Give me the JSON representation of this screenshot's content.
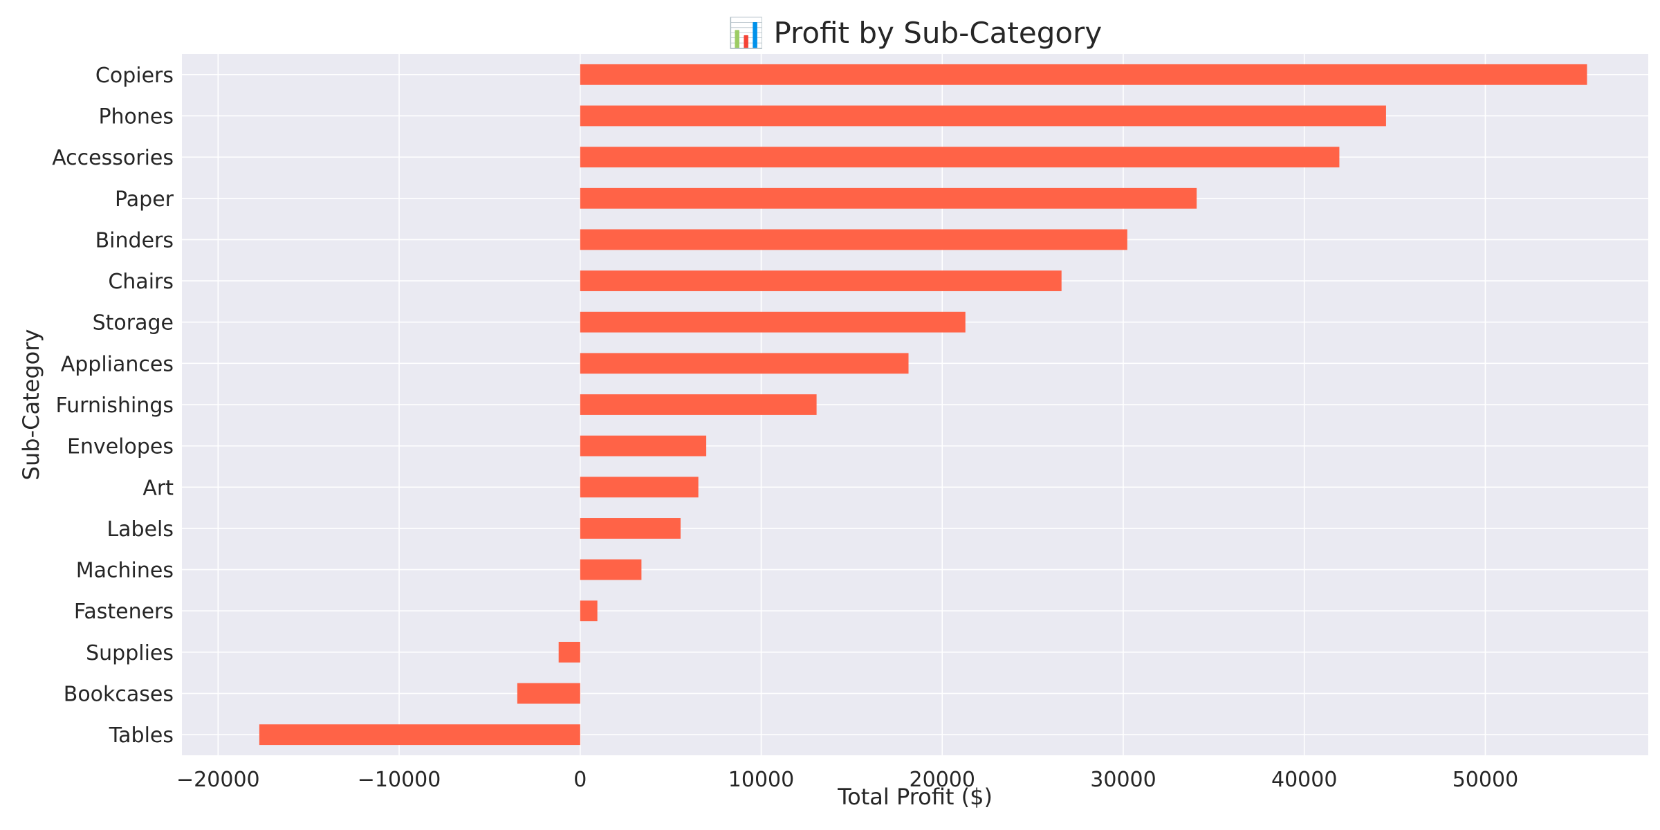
{
  "chart_data": {
    "type": "bar",
    "orientation": "horizontal",
    "title": "📊 Profit by Sub-Category",
    "xlabel": "Total Profit ($)",
    "ylabel": "Sub-Category",
    "xlim": [
      -22000,
      59000
    ],
    "xticks": [
      -20000,
      -10000,
      0,
      10000,
      20000,
      30000,
      40000,
      50000
    ],
    "xtick_labels": [
      "−20000",
      "−10000",
      "0",
      "10000",
      "20000",
      "30000",
      "40000",
      "50000"
    ],
    "grid": true,
    "bar_color": "#FF6347",
    "background_color": "#EAEAF2",
    "categories": [
      "Copiers",
      "Phones",
      "Accessories",
      "Paper",
      "Binders",
      "Chairs",
      "Storage",
      "Appliances",
      "Furnishings",
      "Envelopes",
      "Art",
      "Labels",
      "Machines",
      "Fasteners",
      "Supplies",
      "Bookcases",
      "Tables"
    ],
    "values": [
      55618,
      44516,
      41937,
      34054,
      30222,
      26590,
      21279,
      18138,
      13059,
      6964,
      6528,
      5546,
      3385,
      950,
      -1189,
      -3473,
      -17725
    ]
  }
}
